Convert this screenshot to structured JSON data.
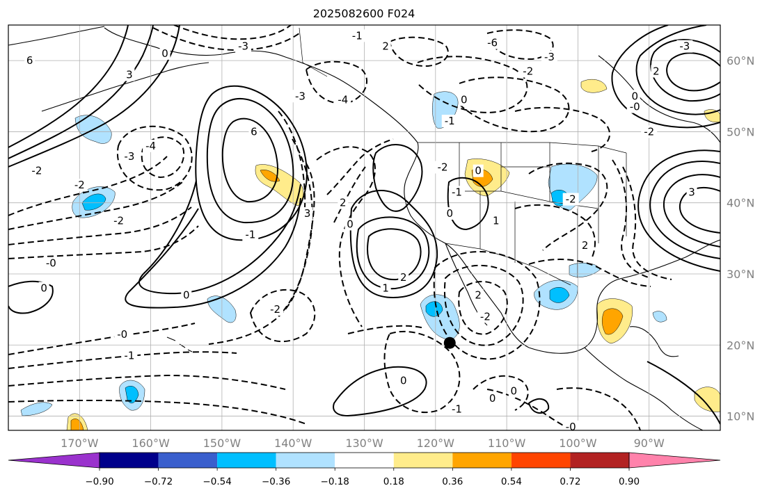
{
  "title": "2025082600 F024",
  "map": {
    "lon_range": [
      -180,
      -80
    ],
    "lat_range": [
      8,
      65
    ],
    "lon_ticks": [
      {
        "value": -170,
        "label": "170°W"
      },
      {
        "value": -160,
        "label": "160°W"
      },
      {
        "value": -150,
        "label": "150°W"
      },
      {
        "value": -140,
        "label": "140°W"
      },
      {
        "value": -130,
        "label": "130°W"
      },
      {
        "value": -120,
        "label": "120°W"
      },
      {
        "value": -110,
        "label": "110°W"
      },
      {
        "value": -100,
        "label": "100°W"
      },
      {
        "value": -90,
        "label": "90°W"
      }
    ],
    "lat_ticks": [
      {
        "value": 10,
        "label": "10°N"
      },
      {
        "value": 20,
        "label": "20°N"
      },
      {
        "value": 30,
        "label": "30°N"
      },
      {
        "value": 40,
        "label": "40°N"
      },
      {
        "value": 50,
        "label": "50°N"
      },
      {
        "value": 60,
        "label": "60°N"
      }
    ],
    "marker": {
      "lon": -118.0,
      "lat": 20.3,
      "color": "#000000"
    },
    "contour_labels": [
      {
        "text": "6",
        "lon": -177,
        "lat": 60
      },
      {
        "text": "-3",
        "lon": -147,
        "lat": 62
      },
      {
        "text": "0",
        "lon": -158,
        "lat": 61
      },
      {
        "text": "3",
        "lon": -163,
        "lat": 58
      },
      {
        "text": "-1",
        "lon": -131,
        "lat": 63.5
      },
      {
        "text": "2",
        "lon": -127,
        "lat": 62
      },
      {
        "text": "-6",
        "lon": -112,
        "lat": 62.5
      },
      {
        "text": "-3",
        "lon": -104,
        "lat": 60.5
      },
      {
        "text": "-2",
        "lon": -107,
        "lat": 58.5
      },
      {
        "text": "-4",
        "lon": -133,
        "lat": 54.5
      },
      {
        "text": "-3",
        "lon": -139,
        "lat": 55
      },
      {
        "text": "-1",
        "lon": -118,
        "lat": 51.5
      },
      {
        "text": "0",
        "lon": -116,
        "lat": 54.5
      },
      {
        "text": "-0",
        "lon": -92,
        "lat": 53.5
      },
      {
        "text": "0",
        "lon": -92,
        "lat": 55
      },
      {
        "text": "2",
        "lon": -89,
        "lat": 58.5
      },
      {
        "text": "-3",
        "lon": -85,
        "lat": 62
      },
      {
        "text": "-2",
        "lon": -90,
        "lat": 50
      },
      {
        "text": "6",
        "lon": -145.5,
        "lat": 50
      },
      {
        "text": "-3",
        "lon": -163,
        "lat": 46.5
      },
      {
        "text": "-4",
        "lon": -160,
        "lat": 48
      },
      {
        "text": "-2",
        "lon": -176,
        "lat": 44.5
      },
      {
        "text": "-2",
        "lon": -170,
        "lat": 42.5
      },
      {
        "text": "-2",
        "lon": -164.5,
        "lat": 37.5
      },
      {
        "text": "3",
        "lon": -138,
        "lat": 38.5
      },
      {
        "text": "-1",
        "lon": -146,
        "lat": 35.5
      },
      {
        "text": "-0",
        "lon": -174,
        "lat": 31.5
      },
      {
        "text": "0",
        "lon": -175,
        "lat": 28
      },
      {
        "text": "0",
        "lon": -155,
        "lat": 27
      },
      {
        "text": "0",
        "lon": -132,
        "lat": 37
      },
      {
        "text": "2",
        "lon": -133,
        "lat": 40
      },
      {
        "text": "-2",
        "lon": -119,
        "lat": 45
      },
      {
        "text": "-1",
        "lon": -117,
        "lat": 41.5
      },
      {
        "text": "0",
        "lon": -118,
        "lat": 38.5
      },
      {
        "text": "0",
        "lon": -114,
        "lat": 44.5
      },
      {
        "text": "1",
        "lon": -111.5,
        "lat": 37.5
      },
      {
        "text": "2",
        "lon": -124.5,
        "lat": 29.5
      },
      {
        "text": "1",
        "lon": -127,
        "lat": 28
      },
      {
        "text": "-2",
        "lon": -101,
        "lat": 40.5
      },
      {
        "text": "2",
        "lon": -99,
        "lat": 34
      },
      {
        "text": "3",
        "lon": -84,
        "lat": 41.5
      },
      {
        "text": "-2",
        "lon": -142.5,
        "lat": 25
      },
      {
        "text": "-2",
        "lon": -113,
        "lat": 24
      },
      {
        "text": "2",
        "lon": -114,
        "lat": 27
      },
      {
        "text": "-0",
        "lon": -164,
        "lat": 21.5
      },
      {
        "text": "-1",
        "lon": -163,
        "lat": 18.5
      },
      {
        "text": "0",
        "lon": -124.5,
        "lat": 15
      },
      {
        "text": "-1",
        "lon": -117,
        "lat": 11
      },
      {
        "text": "0",
        "lon": -112,
        "lat": 12.5
      },
      {
        "text": "0",
        "lon": -109,
        "lat": 13.5
      },
      {
        "text": "-0",
        "lon": -101,
        "lat": 8.5
      }
    ]
  },
  "colorbar": {
    "levels": [
      -0.9,
      -0.72,
      -0.54,
      -0.36,
      -0.18,
      0.18,
      0.36,
      0.54,
      0.72,
      0.9
    ],
    "tick_labels": [
      "−0.90",
      "−0.72",
      "−0.54",
      "−0.36",
      "−0.18",
      "0.18",
      "0.36",
      "0.54",
      "0.72",
      "0.90"
    ],
    "colors": [
      "#9a32cd",
      "#00008b",
      "#3a5fcd",
      "#00bfff",
      "#b0e2ff",
      "#ffffff",
      "#ffec8b",
      "#ffa500",
      "#ff4500",
      "#b22222",
      "#ff82ab"
    ]
  }
}
